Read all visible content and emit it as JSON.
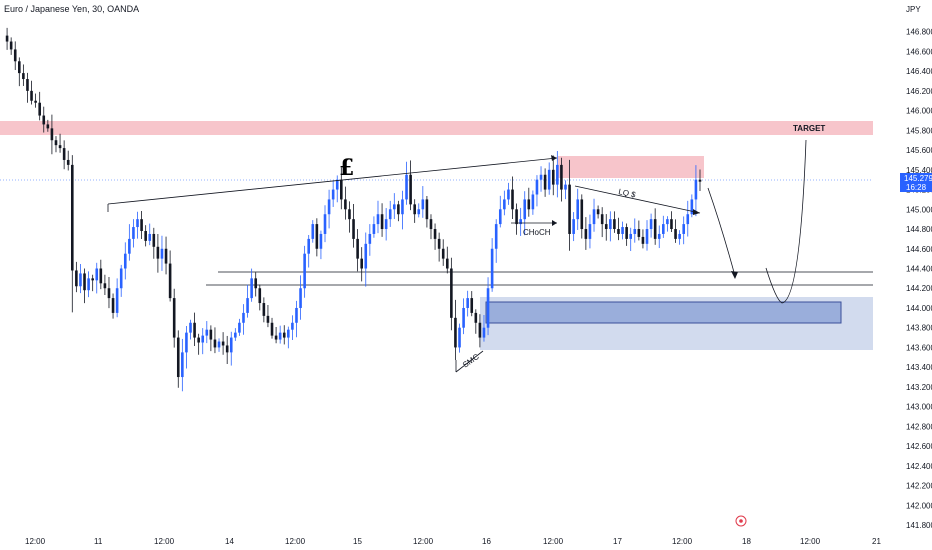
{
  "header": {
    "symbol_title": "Euro / Japanese Yen, 30, OANDA",
    "currency": "JPY"
  },
  "price_tag": {
    "price": "145.279",
    "countdown": "16:28",
    "color": "#2962ff"
  },
  "colors": {
    "bull": "#2962ff",
    "bear": "#131722",
    "supply_zone": "#f7c5cb",
    "demand_zone": "#c7d2ea",
    "demand_inner": "#9aaedb",
    "demand_inner_border": "#3a4f9a",
    "alert_icon": "#e03a4b"
  },
  "icons": {
    "alert": "alert-clock-icon"
  },
  "annotations": {
    "pound": "£",
    "choch": "CHoCH",
    "smc": "SMC",
    "lq": "LQ $",
    "target": "TARGET"
  },
  "chart_data": {
    "type": "candlestick",
    "title": "Euro / Japanese Yen, 30, OANDA",
    "ylabel": "JPY",
    "ylim": [
      141.75,
      147.05
    ],
    "grid": false,
    "last_price": 145.279,
    "y_ticks": [
      "146.800",
      "146.600",
      "146.400",
      "146.200",
      "146.000",
      "145.800",
      "145.600",
      "145.400",
      "145.200",
      "145.000",
      "144.800",
      "144.600",
      "144.400",
      "144.200",
      "144.000",
      "143.800",
      "143.600",
      "143.400",
      "143.200",
      "143.000",
      "142.800",
      "142.600",
      "142.400",
      "142.200",
      "142.000",
      "141.800"
    ],
    "x_ticks": [
      "12:00",
      "11",
      "12:00",
      "14",
      "12:00",
      "15",
      "12:00",
      "16",
      "12:00",
      "17",
      "12:00",
      "18",
      "12:00",
      "21"
    ],
    "price_path": [
      [
        0,
        146.76
      ],
      [
        1,
        146.7
      ],
      [
        2,
        146.62
      ],
      [
        3,
        146.5
      ],
      [
        4,
        146.38
      ],
      [
        5,
        146.32
      ],
      [
        6,
        146.2
      ],
      [
        7,
        146.1
      ],
      [
        8,
        146.08
      ],
      [
        9,
        145.95
      ],
      [
        10,
        145.86
      ],
      [
        11,
        145.82
      ],
      [
        12,
        145.7
      ],
      [
        13,
        145.65
      ],
      [
        14,
        145.62
      ],
      [
        15,
        145.5
      ],
      [
        16,
        145.45
      ],
      [
        17,
        144.38
      ],
      [
        18,
        144.22
      ],
      [
        19,
        144.35
      ],
      [
        20,
        144.18
      ],
      [
        21,
        144.3
      ],
      [
        22,
        144.28
      ],
      [
        23,
        144.4
      ],
      [
        24,
        144.25
      ],
      [
        25,
        144.2
      ],
      [
        26,
        144.1
      ],
      [
        27,
        143.95
      ],
      [
        28,
        144.2
      ],
      [
        29,
        144.4
      ],
      [
        30,
        144.55
      ],
      [
        31,
        144.7
      ],
      [
        32,
        144.82
      ],
      [
        33,
        144.9
      ],
      [
        34,
        144.78
      ],
      [
        35,
        144.68
      ],
      [
        36,
        144.75
      ],
      [
        37,
        144.62
      ],
      [
        38,
        144.5
      ],
      [
        39,
        144.6
      ],
      [
        40,
        144.45
      ],
      [
        41,
        144.1
      ],
      [
        42,
        143.7
      ],
      [
        43,
        143.3
      ],
      [
        44,
        143.55
      ],
      [
        45,
        143.75
      ],
      [
        46,
        143.85
      ],
      [
        47,
        143.7
      ],
      [
        48,
        143.65
      ],
      [
        49,
        143.72
      ],
      [
        50,
        143.78
      ],
      [
        51,
        143.68
      ],
      [
        52,
        143.6
      ],
      [
        53,
        143.66
      ],
      [
        54,
        143.62
      ],
      [
        55,
        143.55
      ],
      [
        56,
        143.7
      ],
      [
        57,
        143.75
      ],
      [
        58,
        143.85
      ],
      [
        59,
        143.95
      ],
      [
        60,
        144.1
      ],
      [
        61,
        144.3
      ],
      [
        62,
        144.2
      ],
      [
        63,
        144.05
      ],
      [
        64,
        143.92
      ],
      [
        65,
        143.85
      ],
      [
        66,
        143.72
      ],
      [
        67,
        143.68
      ],
      [
        68,
        143.75
      ],
      [
        69,
        143.7
      ],
      [
        70,
        143.78
      ],
      [
        71,
        143.85
      ],
      [
        72,
        144.0
      ],
      [
        73,
        144.2
      ],
      [
        74,
        144.55
      ],
      [
        75,
        144.7
      ],
      [
        76,
        144.85
      ],
      [
        77,
        144.6
      ],
      [
        78,
        144.75
      ],
      [
        79,
        144.95
      ],
      [
        80,
        145.1
      ],
      [
        81,
        145.2
      ],
      [
        82,
        145.3
      ],
      [
        83,
        145.1
      ],
      [
        84,
        145.0
      ],
      [
        85,
        144.9
      ],
      [
        86,
        144.7
      ],
      [
        87,
        144.5
      ],
      [
        88,
        144.4
      ],
      [
        89,
        144.65
      ],
      [
        90,
        144.75
      ],
      [
        91,
        144.85
      ],
      [
        92,
        144.95
      ],
      [
        93,
        144.8
      ],
      [
        94,
        144.9
      ],
      [
        95,
        145.0
      ],
      [
        96,
        145.05
      ],
      [
        97,
        144.95
      ],
      [
        98,
        145.1
      ],
      [
        99,
        145.35
      ],
      [
        100,
        145.05
      ],
      [
        101,
        144.95
      ],
      [
        102,
        145.0
      ],
      [
        103,
        145.1
      ],
      [
        104,
        144.9
      ],
      [
        105,
        144.8
      ],
      [
        106,
        144.7
      ],
      [
        107,
        144.6
      ],
      [
        108,
        144.5
      ],
      [
        109,
        144.4
      ],
      [
        110,
        143.9
      ],
      [
        111,
        143.6
      ],
      [
        112,
        143.8
      ],
      [
        113,
        144.0
      ],
      [
        114,
        144.1
      ],
      [
        115,
        143.95
      ],
      [
        116,
        143.85
      ],
      [
        117,
        143.7
      ],
      [
        118,
        143.8
      ],
      [
        119,
        144.2
      ],
      [
        120,
        144.6
      ],
      [
        121,
        144.85
      ],
      [
        122,
        145.0
      ],
      [
        123,
        145.1
      ],
      [
        124,
        145.2
      ],
      [
        125,
        145.0
      ],
      [
        126,
        144.85
      ],
      [
        127,
        144.9
      ],
      [
        128,
        145.1
      ],
      [
        129,
        145.0
      ],
      [
        130,
        145.15
      ],
      [
        131,
        145.3
      ],
      [
        132,
        145.35
      ],
      [
        133,
        145.2
      ],
      [
        134,
        145.4
      ],
      [
        135,
        145.25
      ],
      [
        136,
        145.45
      ],
      [
        137,
        145.2
      ],
      [
        138,
        145.25
      ],
      [
        139,
        144.75
      ],
      [
        140,
        144.9
      ],
      [
        141,
        145.1
      ],
      [
        142,
        144.8
      ],
      [
        143,
        144.7
      ],
      [
        144,
        144.85
      ],
      [
        145,
        145.0
      ],
      [
        146,
        144.95
      ],
      [
        147,
        144.85
      ],
      [
        148,
        144.8
      ],
      [
        149,
        144.9
      ],
      [
        150,
        144.8
      ],
      [
        151,
        144.75
      ],
      [
        152,
        144.82
      ],
      [
        153,
        144.7
      ],
      [
        154,
        144.75
      ],
      [
        155,
        144.8
      ],
      [
        156,
        144.72
      ],
      [
        157,
        144.65
      ],
      [
        158,
        144.8
      ],
      [
        159,
        144.9
      ],
      [
        160,
        144.7
      ],
      [
        161,
        144.75
      ],
      [
        162,
        144.85
      ],
      [
        163,
        144.9
      ],
      [
        164,
        144.8
      ],
      [
        165,
        144.7
      ],
      [
        166,
        144.75
      ],
      [
        167,
        144.85
      ],
      [
        168,
        144.95
      ],
      [
        169,
        145.1
      ],
      [
        170,
        145.3
      ],
      [
        171,
        145.28
      ]
    ],
    "zones": [
      {
        "name": "upper-supply-band",
        "y": [
          145.72,
          145.86
        ],
        "x": "full-width"
      },
      {
        "name": "supply-box",
        "y": [
          145.26,
          145.52
        ],
        "x": [
          13,
          "17 12:00"
        ]
      },
      {
        "name": "demand-zone",
        "y": [
          143.58,
          144.12
        ]
      },
      {
        "name": "demand-inner-box",
        "y": [
          143.84,
          144.06
        ]
      }
    ],
    "levels": [
      {
        "name": "resistance-line",
        "price": 144.38
      },
      {
        "name": "support-line",
        "price": 144.23
      }
    ],
    "projection": [
      145.28,
      144.35,
      144.0,
      145.8
    ],
    "legend": "none"
  }
}
